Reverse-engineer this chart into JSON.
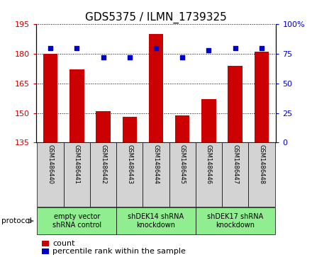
{
  "title": "GDS5375 / ILMN_1739325",
  "samples": [
    "GSM1486440",
    "GSM1486441",
    "GSM1486442",
    "GSM1486443",
    "GSM1486444",
    "GSM1486445",
    "GSM1486446",
    "GSM1486447",
    "GSM1486448"
  ],
  "counts": [
    180,
    172,
    151,
    148,
    190,
    149,
    157,
    174,
    181
  ],
  "percentile_ranks": [
    80,
    80,
    72,
    72,
    80,
    72,
    78,
    80,
    80
  ],
  "ylim_left": [
    135,
    195
  ],
  "ylim_right": [
    0,
    100
  ],
  "yticks_left": [
    135,
    150,
    165,
    180,
    195
  ],
  "yticks_right": [
    0,
    25,
    50,
    75,
    100
  ],
  "groups": [
    {
      "label": "empty vector\nshRNA control",
      "start": 0,
      "end": 3,
      "color": "#90EE90"
    },
    {
      "label": "shDEK14 shRNA\nknockdown",
      "start": 3,
      "end": 6,
      "color": "#90EE90"
    },
    {
      "label": "shDEK17 shRNA\nknockdown",
      "start": 6,
      "end": 9,
      "color": "#90EE90"
    }
  ],
  "bar_color": "#CC0000",
  "dot_color": "#0000CC",
  "background_color": "#ffffff",
  "tick_color_left": "#CC0000",
  "tick_color_right": "#0000CC",
  "sample_bg_color": "#D3D3D3",
  "protocol_label": "protocol",
  "legend_count_label": "count",
  "legend_percentile_label": "percentile rank within the sample",
  "title_fontsize": 11,
  "tick_fontsize": 8,
  "sample_fontsize": 6,
  "group_fontsize": 7,
  "legend_fontsize": 8
}
